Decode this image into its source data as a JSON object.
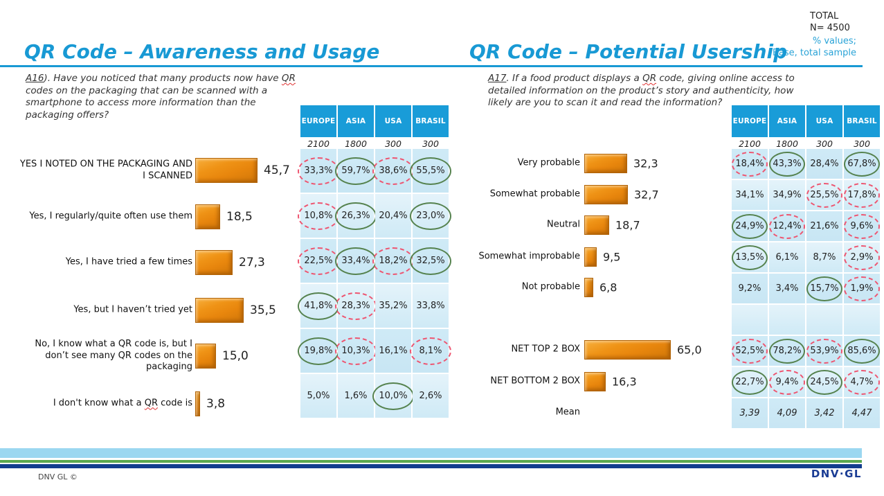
{
  "header": {
    "total_label": "TOTAL",
    "total_n": "N= 4500",
    "note_line1": "% values;",
    "note_line2": "Base, total sample"
  },
  "footer": {
    "copyright": "DNV GL ©",
    "logo": "DNV·GL"
  },
  "colors": {
    "accent_blue": "#1899D4",
    "header_blue": "#199CD8",
    "bar_orange": "#E8860D",
    "mark_high_green": "#55824E",
    "mark_low_red": "#EE5570",
    "note_cyan": "#29A3D7",
    "stripe_lightblue": "#9BD7F0",
    "stripe_green": "#5BA84F",
    "stripe_navy": "#123D8E",
    "logo_navy": "#1A3C94"
  },
  "chart_data": [
    {
      "type": "bar",
      "orientation": "horizontal",
      "title": "QR Code – Awareness and Usage",
      "question_prefix": "A16",
      "question_suffix": "). ",
      "question": "Have you noticed that many products now have QR codes on the packaging that can be scanned with a smartphone to access more information than the packaging offers?",
      "categories": [
        "YES I NOTED ON THE PACKAGING AND I SCANNED",
        "Yes, I regularly/quite often use them",
        "Yes, I have tried a few times",
        "Yes, but I haven’t tried yet",
        "No, I know what a QR code is, but I don’t see many QR codes on the packaging",
        "I don't know what a QR code is"
      ],
      "values": [
        45.7,
        18.5,
        27.3,
        35.5,
        15.0,
        3.8
      ],
      "value_labels": [
        "45,7",
        "18,5",
        "27,3",
        "35,5",
        "15,0",
        "3,8"
      ],
      "squiggle_category_indexes": [
        5
      ],
      "xlim": [
        0,
        50
      ],
      "legend": "none",
      "grid": false,
      "table": {
        "columns": [
          "EUROPE",
          "ASIA",
          "USA",
          "BRASIL"
        ],
        "bases": [
          "2100",
          "1800",
          "300",
          "300"
        ],
        "mark_legend": {
          "high": "green solid oval (significantly higher)",
          "low": "red dashed oval (significantly lower)"
        },
        "rows": [
          {
            "cells": [
              {
                "v": "33,3%",
                "mark": "low"
              },
              {
                "v": "59,7%",
                "mark": "high"
              },
              {
                "v": "38,6%",
                "mark": "low"
              },
              {
                "v": "55,5%",
                "mark": "high"
              }
            ]
          },
          {
            "cells": [
              {
                "v": "10,8%",
                "mark": "low"
              },
              {
                "v": "26,3%",
                "mark": "high"
              },
              {
                "v": "20,4%"
              },
              {
                "v": "23,0%",
                "mark": "high"
              }
            ]
          },
          {
            "cells": [
              {
                "v": "22,5%",
                "mark": "low"
              },
              {
                "v": "33,4%",
                "mark": "high"
              },
              {
                "v": "18,2%",
                "mark": "low"
              },
              {
                "v": "32,5%",
                "mark": "high"
              }
            ]
          },
          {
            "cells": [
              {
                "v": "41,8%",
                "mark": "high"
              },
              {
                "v": "28,3%",
                "mark": "low"
              },
              {
                "v": "35,2%"
              },
              {
                "v": "33,8%"
              }
            ]
          },
          {
            "cells": [
              {
                "v": "19,8%",
                "mark": "high"
              },
              {
                "v": "10,3%",
                "mark": "low"
              },
              {
                "v": "16,1%"
              },
              {
                "v": "8,1%",
                "mark": "low"
              }
            ]
          },
          {
            "cells": [
              {
                "v": "5,0%"
              },
              {
                "v": "1,6%"
              },
              {
                "v": "10,0%",
                "mark": "high"
              },
              {
                "v": "2,6%"
              }
            ]
          }
        ]
      }
    },
    {
      "type": "bar",
      "orientation": "horizontal",
      "title": "QR Code – Potential Usership",
      "question_prefix": "A17",
      "question_suffix": ". ",
      "question": "If a food product displays a QR code, giving online access to detailed information on the product’s story and authenticity, how likely are you to scan it and read the information?",
      "categories": [
        "Very probable",
        "Somewhat probable",
        "Neutral",
        "Somewhat improbable",
        "Not probable",
        "NET TOP 2 BOX",
        "NET BOTTOM 2 BOX",
        "Mean"
      ],
      "values": [
        32.3,
        32.7,
        18.7,
        9.5,
        6.8,
        65.0,
        16.3,
        null
      ],
      "value_labels": [
        "32,3",
        "32,7",
        "18,7",
        "9,5",
        "6,8",
        "65,0",
        "16,3",
        null
      ],
      "squiggle_category_indexes": [],
      "xlim": [
        0,
        70
      ],
      "legend": "none",
      "grid": false,
      "table": {
        "columns": [
          "EUROPE",
          "ASIA",
          "USA",
          "BRASIL"
        ],
        "bases": [
          "2100",
          "1800",
          "300",
          "300"
        ],
        "mark_legend": {
          "high": "green solid oval (significantly higher)",
          "low": "red dashed oval (significantly lower)"
        },
        "rows": [
          {
            "cells": [
              {
                "v": "18,4%",
                "mark": "low"
              },
              {
                "v": "43,3%",
                "mark": "high"
              },
              {
                "v": "28,4%"
              },
              {
                "v": "67,8%",
                "mark": "high"
              }
            ]
          },
          {
            "cells": [
              {
                "v": "34,1%"
              },
              {
                "v": "34,9%"
              },
              {
                "v": "25,5%",
                "mark": "low"
              },
              {
                "v": "17,8%",
                "mark": "low"
              }
            ]
          },
          {
            "cells": [
              {
                "v": "24,9%",
                "mark": "high"
              },
              {
                "v": "12,4%",
                "mark": "low"
              },
              {
                "v": "21,6%"
              },
              {
                "v": "9,6%",
                "mark": "low"
              }
            ]
          },
          {
            "cells": [
              {
                "v": "13,5%",
                "mark": "high"
              },
              {
                "v": "6,1%"
              },
              {
                "v": "8,7%"
              },
              {
                "v": "2,9%",
                "mark": "low"
              }
            ]
          },
          {
            "cells": [
              {
                "v": "9,2%"
              },
              {
                "v": "3,4%"
              },
              {
                "v": "15,7%",
                "mark": "high"
              },
              {
                "v": "1,9%",
                "mark": "low"
              }
            ]
          },
          {
            "cells": [
              {
                "v": ""
              },
              {
                "v": ""
              },
              {
                "v": ""
              },
              {
                "v": ""
              }
            ]
          },
          {
            "cells": [
              {
                "v": "52,5%",
                "mark": "low"
              },
              {
                "v": "78,2%",
                "mark": "high"
              },
              {
                "v": "53,9%",
                "mark": "low"
              },
              {
                "v": "85,6%",
                "mark": "high"
              }
            ]
          },
          {
            "cells": [
              {
                "v": "22,7%",
                "mark": "high"
              },
              {
                "v": "9,4%",
                "mark": "low"
              },
              {
                "v": "24,5%",
                "mark": "high"
              },
              {
                "v": "4,7%",
                "mark": "low"
              }
            ]
          },
          {
            "cells": [
              {
                "v": "3,39"
              },
              {
                "v": "4,09"
              },
              {
                "v": "3,42"
              },
              {
                "v": "4,47"
              }
            ],
            "style": "mean"
          }
        ]
      }
    }
  ]
}
